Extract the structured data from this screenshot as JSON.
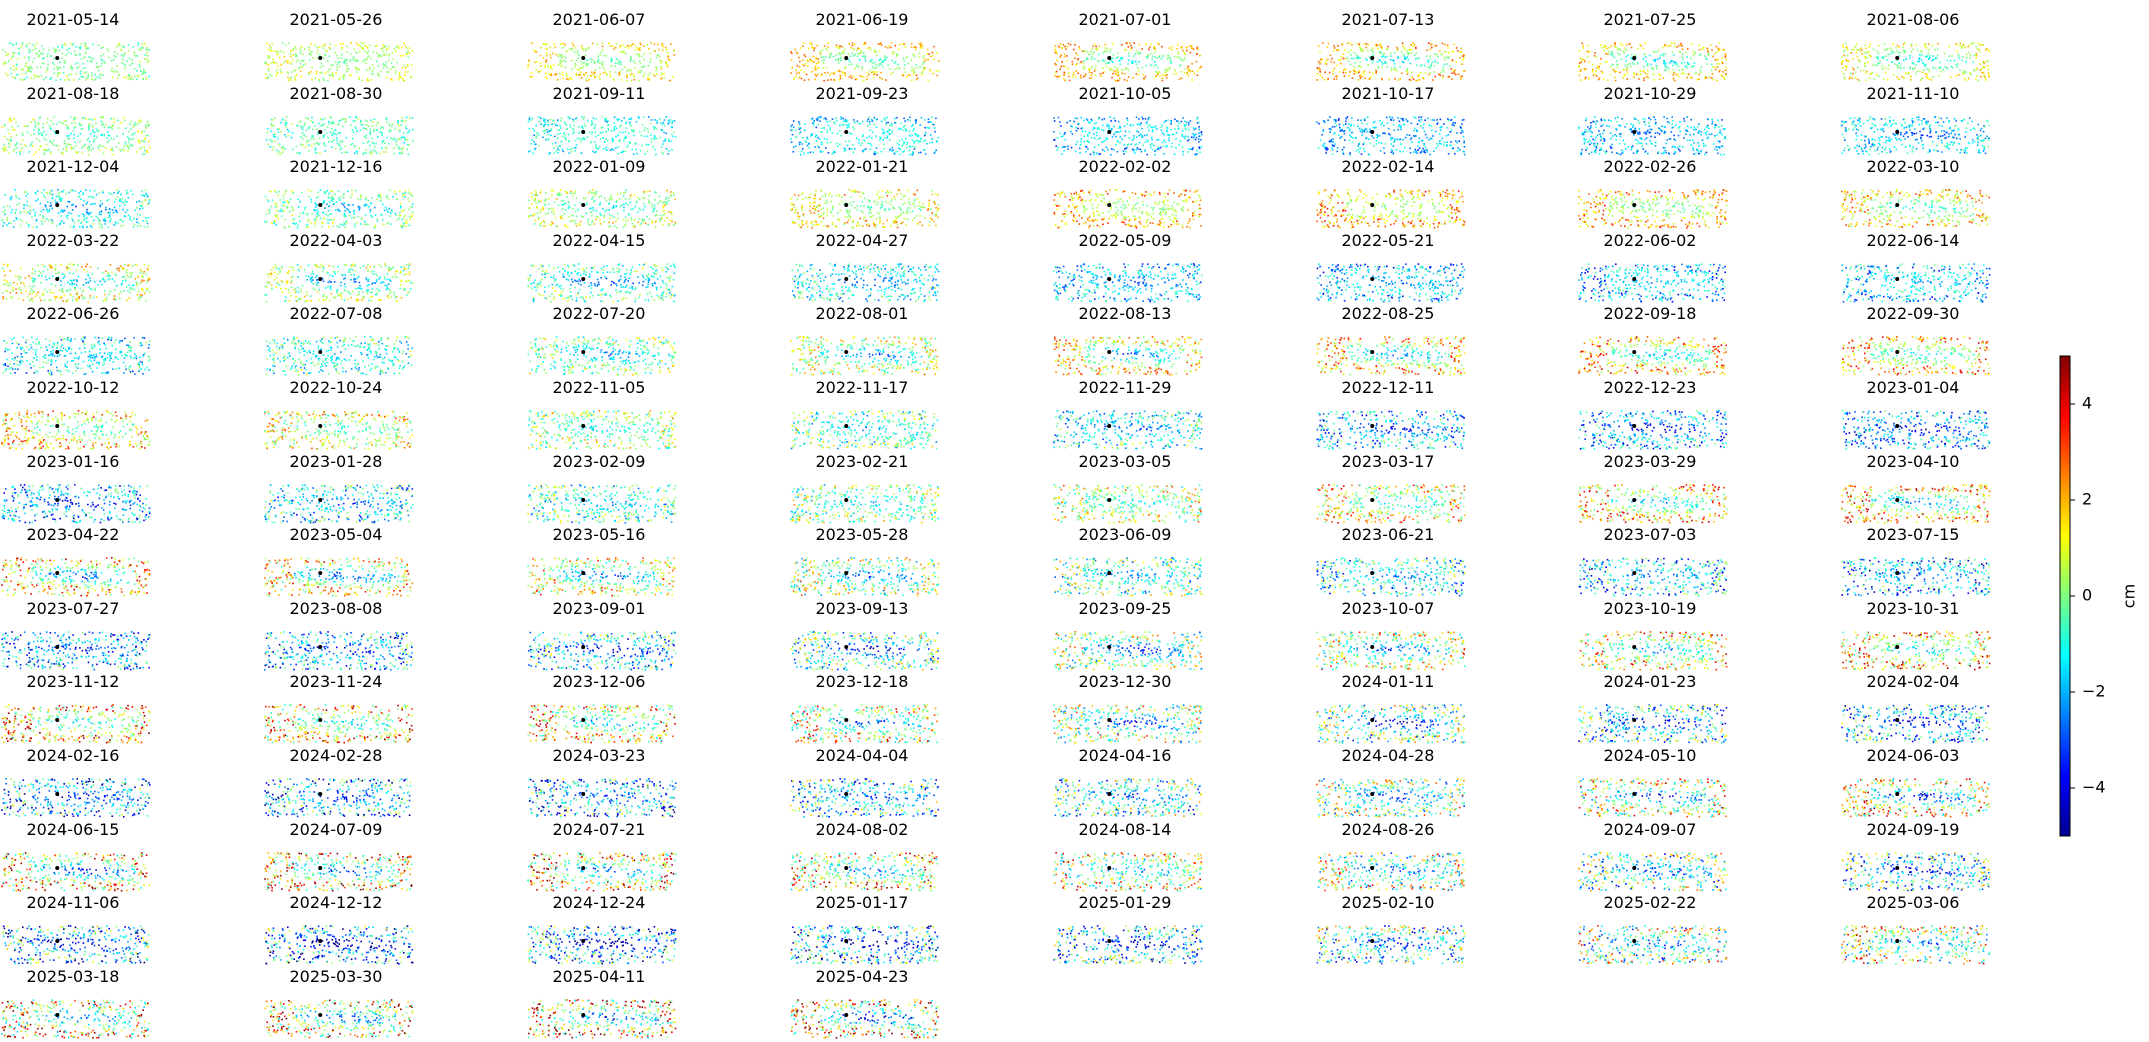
{
  "chart_data": {
    "type": "scatter",
    "description_kind": "small-multiples displacement maps",
    "panels": [
      "2021-05-14",
      "2021-05-26",
      "2021-06-07",
      "2021-06-19",
      "2021-07-01",
      "2021-07-13",
      "2021-07-25",
      "2021-08-06",
      "2021-08-18",
      "2021-08-30",
      "2021-09-11",
      "2021-09-23",
      "2021-10-05",
      "2021-10-17",
      "2021-10-29",
      "2021-11-10",
      "2021-12-04",
      "2021-12-16",
      "2022-01-09",
      "2022-01-21",
      "2022-02-02",
      "2022-02-14",
      "2022-02-26",
      "2022-03-10",
      "2022-03-22",
      "2022-04-03",
      "2022-04-15",
      "2022-04-27",
      "2022-05-09",
      "2022-05-21",
      "2022-06-02",
      "2022-06-14",
      "2022-06-26",
      "2022-07-08",
      "2022-07-20",
      "2022-08-01",
      "2022-08-13",
      "2022-08-25",
      "2022-09-18",
      "2022-09-30",
      "2022-10-12",
      "2022-10-24",
      "2022-11-05",
      "2022-11-17",
      "2022-11-29",
      "2022-12-11",
      "2022-12-23",
      "2023-01-04",
      "2023-01-16",
      "2023-01-28",
      "2023-02-09",
      "2023-02-21",
      "2023-03-05",
      "2023-03-17",
      "2023-03-29",
      "2023-04-10",
      "2023-04-22",
      "2023-05-04",
      "2023-05-16",
      "2023-05-28",
      "2023-06-09",
      "2023-06-21",
      "2023-07-03",
      "2023-07-15",
      "2023-07-27",
      "2023-08-08",
      "2023-09-01",
      "2023-09-13",
      "2023-09-25",
      "2023-10-07",
      "2023-10-19",
      "2023-10-31",
      "2023-11-12",
      "2023-11-24",
      "2023-12-06",
      "2023-12-18",
      "2023-12-30",
      "2024-01-11",
      "2024-01-23",
      "2024-02-04",
      "2024-02-16",
      "2024-02-28",
      "2024-03-23",
      "2024-04-04",
      "2024-04-16",
      "2024-04-28",
      "2024-05-10",
      "2024-06-03",
      "2024-06-15",
      "2024-07-09",
      "2024-07-21",
      "2024-08-02",
      "2024-08-14",
      "2024-08-26",
      "2024-09-07",
      "2024-09-19",
      "2024-11-06",
      "2024-12-12",
      "2024-12-24",
      "2025-01-17",
      "2025-01-29",
      "2025-02-10",
      "2025-02-22",
      "2025-03-06",
      "2025-03-18",
      "2025-03-30",
      "2025-04-11",
      "2025-04-23"
    ],
    "colormap": "jet",
    "colorbar": {
      "label": "cm",
      "range": [
        -5,
        5
      ],
      "ticks": [
        -4,
        -2,
        0,
        2,
        4
      ],
      "tick_labels": [
        "−4",
        "−2",
        "0",
        "2",
        "4"
      ]
    },
    "reference_point_color": "#000000",
    "axes_visible": false,
    "grid": false
  }
}
